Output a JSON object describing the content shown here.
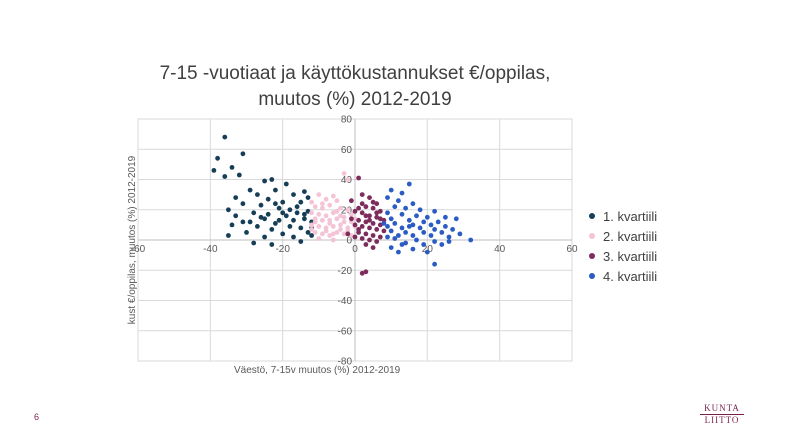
{
  "slide": {
    "title_line1": "7-15 -vuotiaat ja käyttökustannukset  €/oppilas,",
    "title_line2": "muutos (%) 2012-2019",
    "page_number": "6",
    "logo_top": "KUNTA",
    "logo_bottom": "LIITTO"
  },
  "chart_data": {
    "type": "scatter",
    "title": "7-15 -vuotiaat ja käyttökustannukset  €/oppilas, muutos (%) 2012-2019",
    "xlabel": "Väestö, 7-15v muutos (%) 2012-2019",
    "ylabel": "kust €/oppilas, muutos (%) 2012-2019",
    "xlim": [
      -60,
      60
    ],
    "ylim": [
      -80,
      80
    ],
    "x_ticks": [
      -60,
      -40,
      -20,
      0,
      20,
      40,
      60
    ],
    "y_ticks": [
      -80,
      -60,
      -40,
      -20,
      0,
      20,
      40,
      60,
      80
    ],
    "grid": true,
    "legend_position": "right",
    "series": [
      {
        "name": "1. kvartiili",
        "color": "#163e56",
        "points": [
          [
            -36,
            68
          ],
          [
            -38,
            54
          ],
          [
            -34,
            48
          ],
          [
            -39,
            46
          ],
          [
            -31,
            57
          ],
          [
            -36,
            42
          ],
          [
            -32,
            43
          ],
          [
            -23,
            40
          ],
          [
            -25,
            39
          ],
          [
            -29,
            33
          ],
          [
            -33,
            28
          ],
          [
            -22,
            33
          ],
          [
            -27,
            30
          ],
          [
            -19,
            37
          ],
          [
            -17,
            30
          ],
          [
            -14,
            32
          ],
          [
            -13,
            28
          ],
          [
            -24,
            27
          ],
          [
            -20,
            25
          ],
          [
            -15,
            25
          ],
          [
            -31,
            24
          ],
          [
            -26,
            23
          ],
          [
            -21,
            21
          ],
          [
            -18,
            20
          ],
          [
            -28,
            18
          ],
          [
            -16,
            18
          ],
          [
            -13,
            19
          ],
          [
            -33,
            16
          ],
          [
            -24,
            17
          ],
          [
            -19,
            16
          ],
          [
            -25,
            14
          ],
          [
            -21,
            13
          ],
          [
            -17,
            13
          ],
          [
            -14,
            14
          ],
          [
            -29,
            12
          ],
          [
            -22,
            11
          ],
          [
            -12,
            12
          ],
          [
            -34,
            10
          ],
          [
            -27,
            9
          ],
          [
            -18,
            9
          ],
          [
            -23,
            7
          ],
          [
            -15,
            8
          ],
          [
            -30,
            5
          ],
          [
            -20,
            4
          ],
          [
            -13,
            5
          ],
          [
            -35,
            3
          ],
          [
            -25,
            2
          ],
          [
            -17,
            2
          ],
          [
            -12,
            3
          ],
          [
            -28,
            -2
          ],
          [
            -23,
            -3
          ],
          [
            -15,
            -1
          ],
          [
            -31,
            12
          ],
          [
            -26,
            15
          ],
          [
            -20,
            18
          ],
          [
            -16,
            22
          ],
          [
            -22,
            24
          ],
          [
            -35,
            20
          ],
          [
            -14,
            17
          ],
          [
            -12,
            8
          ]
        ]
      },
      {
        "name": "2. kvartiili",
        "color": "#f4c4d6",
        "points": [
          [
            -3,
            44
          ],
          [
            -2,
            40
          ],
          [
            -6,
            29
          ],
          [
            -10,
            30
          ],
          [
            -8,
            27
          ],
          [
            -5,
            26
          ],
          [
            -12,
            25
          ],
          [
            -11,
            22
          ],
          [
            -9,
            21
          ],
          [
            -7,
            23
          ],
          [
            -4,
            21
          ],
          [
            -2,
            20
          ],
          [
            -12,
            18
          ],
          [
            -10,
            17
          ],
          [
            -8,
            16
          ],
          [
            -6,
            18
          ],
          [
            -4,
            16
          ],
          [
            -1,
            17
          ],
          [
            -11,
            14
          ],
          [
            -9,
            13
          ],
          [
            -7,
            13
          ],
          [
            -5,
            14
          ],
          [
            -3,
            12
          ],
          [
            -1,
            12
          ],
          [
            -12,
            10
          ],
          [
            -10,
            9
          ],
          [
            -8,
            8
          ],
          [
            -6,
            9
          ],
          [
            -4,
            7
          ],
          [
            -2,
            8
          ],
          [
            -11,
            5
          ],
          [
            -9,
            4
          ],
          [
            -7,
            3
          ],
          [
            -5,
            5
          ],
          [
            -3,
            4
          ],
          [
            -1,
            3
          ],
          [
            -10,
            1
          ],
          [
            -6,
            0
          ],
          [
            -8,
            6
          ],
          [
            -2,
            6
          ],
          [
            -12,
            7
          ],
          [
            -4,
            10
          ],
          [
            0,
            14
          ],
          [
            -7,
            11
          ],
          [
            -9,
            24
          ],
          [
            -5,
            19
          ],
          [
            -3,
            15
          ],
          [
            0,
            9
          ],
          [
            -6,
            4
          ],
          [
            -11,
            12
          ]
        ]
      },
      {
        "name": "3. kvartiili",
        "color": "#7d2c5c",
        "points": [
          [
            1,
            41
          ],
          [
            2,
            30
          ],
          [
            4,
            28
          ],
          [
            6,
            24
          ],
          [
            -1,
            26
          ],
          [
            3,
            22
          ],
          [
            5,
            21
          ],
          [
            7,
            19
          ],
          [
            0,
            19
          ],
          [
            2,
            18
          ],
          [
            4,
            16
          ],
          [
            6,
            15
          ],
          [
            8,
            13
          ],
          [
            -1,
            14
          ],
          [
            1,
            13
          ],
          [
            3,
            12
          ],
          [
            5,
            11
          ],
          [
            7,
            10
          ],
          [
            0,
            10
          ],
          [
            2,
            9
          ],
          [
            4,
            8
          ],
          [
            6,
            7
          ],
          [
            8,
            6
          ],
          [
            1,
            5
          ],
          [
            3,
            4
          ],
          [
            5,
            3
          ],
          [
            7,
            2
          ],
          [
            0,
            2
          ],
          [
            2,
            1
          ],
          [
            4,
            0
          ],
          [
            6,
            -1
          ],
          [
            3,
            -3
          ],
          [
            5,
            -5
          ],
          [
            1,
            7
          ],
          [
            4,
            13
          ],
          [
            6,
            18
          ],
          [
            2,
            24
          ],
          [
            5,
            25
          ],
          [
            -2,
            4
          ],
          [
            3,
            -21
          ],
          [
            2,
            -22
          ],
          [
            7,
            14
          ],
          [
            3,
            16
          ],
          [
            1,
            21
          ]
        ]
      },
      {
        "name": "4. kvartiili",
        "color": "#2a5cc4",
        "points": [
          [
            15,
            37
          ],
          [
            10,
            33
          ],
          [
            13,
            31
          ],
          [
            9,
            28
          ],
          [
            12,
            26
          ],
          [
            16,
            24
          ],
          [
            11,
            22
          ],
          [
            14,
            21
          ],
          [
            18,
            20
          ],
          [
            22,
            19
          ],
          [
            9,
            18
          ],
          [
            13,
            17
          ],
          [
            17,
            16
          ],
          [
            20,
            15
          ],
          [
            25,
            15
          ],
          [
            28,
            14
          ],
          [
            10,
            14
          ],
          [
            15,
            13
          ],
          [
            19,
            12
          ],
          [
            23,
            12
          ],
          [
            11,
            11
          ],
          [
            16,
            10
          ],
          [
            21,
            10
          ],
          [
            25,
            9
          ],
          [
            9,
            9
          ],
          [
            13,
            8
          ],
          [
            18,
            8
          ],
          [
            22,
            7
          ],
          [
            27,
            7
          ],
          [
            10,
            6
          ],
          [
            14,
            5
          ],
          [
            19,
            5
          ],
          [
            24,
            5
          ],
          [
            29,
            4
          ],
          [
            12,
            3
          ],
          [
            16,
            3
          ],
          [
            21,
            3
          ],
          [
            26,
            2
          ],
          [
            32,
            0
          ],
          [
            11,
            1
          ],
          [
            17,
            0
          ],
          [
            22,
            -1
          ],
          [
            14,
            -2
          ],
          [
            19,
            -3
          ],
          [
            24,
            -3
          ],
          [
            10,
            -5
          ],
          [
            16,
            -6
          ],
          [
            20,
            -8
          ],
          [
            22,
            -16
          ],
          [
            12,
            -8
          ],
          [
            26,
            -1
          ],
          [
            8,
            11
          ],
          [
            9,
            2
          ],
          [
            13,
            -3
          ],
          [
            15,
            9
          ]
        ]
      }
    ]
  }
}
